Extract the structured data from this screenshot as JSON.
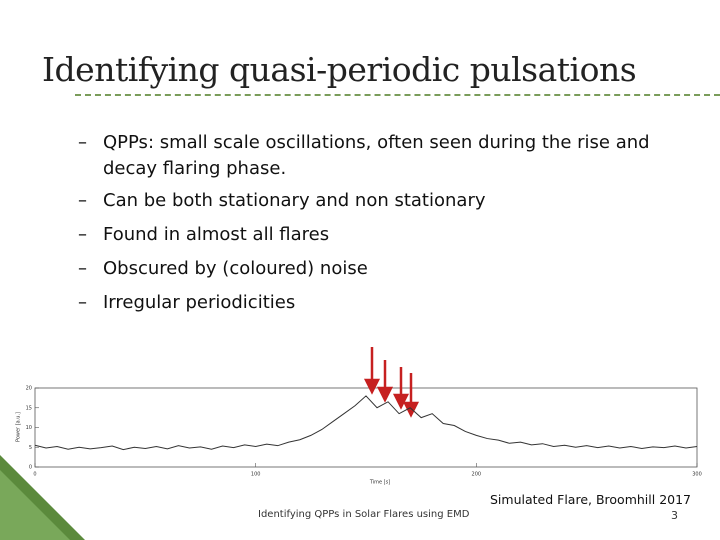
{
  "header": {
    "title": "Identifying quasi-periodic pulsations"
  },
  "bullets": [
    "QPPs: small scale oscillations, often seen during the rise and decay flaring phase.",
    "Can be both stationary and non stationary",
    "Found in almost all flares",
    "Obscured by (coloured) noise",
    "Irregular periodicities"
  ],
  "chart_data": {
    "type": "line",
    "x_label": "Time [s]",
    "y_label": "Power [a.u.]",
    "x": [
      0,
      5,
      10,
      15,
      20,
      25,
      30,
      35,
      40,
      45,
      50,
      55,
      60,
      65,
      70,
      75,
      80,
      85,
      90,
      95,
      100,
      105,
      110,
      115,
      120,
      125,
      130,
      135,
      140,
      145,
      150,
      155,
      160,
      165,
      170,
      175,
      180,
      185,
      190,
      195,
      200,
      205,
      210,
      215,
      220,
      225,
      230,
      235,
      240,
      245,
      250,
      255,
      260,
      265,
      270,
      275,
      280,
      285,
      290,
      295,
      300
    ],
    "values": [
      5.5,
      4.8,
      5.2,
      4.5,
      5,
      4.6,
      4.9,
      5.3,
      4.4,
      5,
      4.7,
      5.2,
      4.6,
      5.4,
      4.8,
      5.1,
      4.5,
      5.3,
      4.9,
      5.6,
      5.2,
      5.8,
      5.4,
      6.3,
      6.9,
      8,
      9.5,
      11.5,
      13.5,
      15.5,
      18,
      15,
      16.5,
      13.5,
      15,
      12.5,
      13.5,
      11,
      10.5,
      9,
      8,
      7.2,
      6.8,
      6,
      6.3,
      5.6,
      5.9,
      5.2,
      5.5,
      5,
      5.4,
      4.9,
      5.3,
      4.8,
      5.2,
      4.7,
      5.1,
      4.9,
      5.3,
      4.8,
      5.2
    ],
    "color": "#333333",
    "xlim": [
      0,
      300
    ],
    "ylim": [
      0,
      20
    ],
    "xticks": [
      0,
      100,
      200,
      300
    ],
    "yticks": [
      0,
      5,
      10,
      15,
      20
    ]
  },
  "footer": {
    "text": "Identifying QPPs in Solar Flares using EMD",
    "caption": "Simulated Flare, Broomhill 2017",
    "page": "3"
  }
}
